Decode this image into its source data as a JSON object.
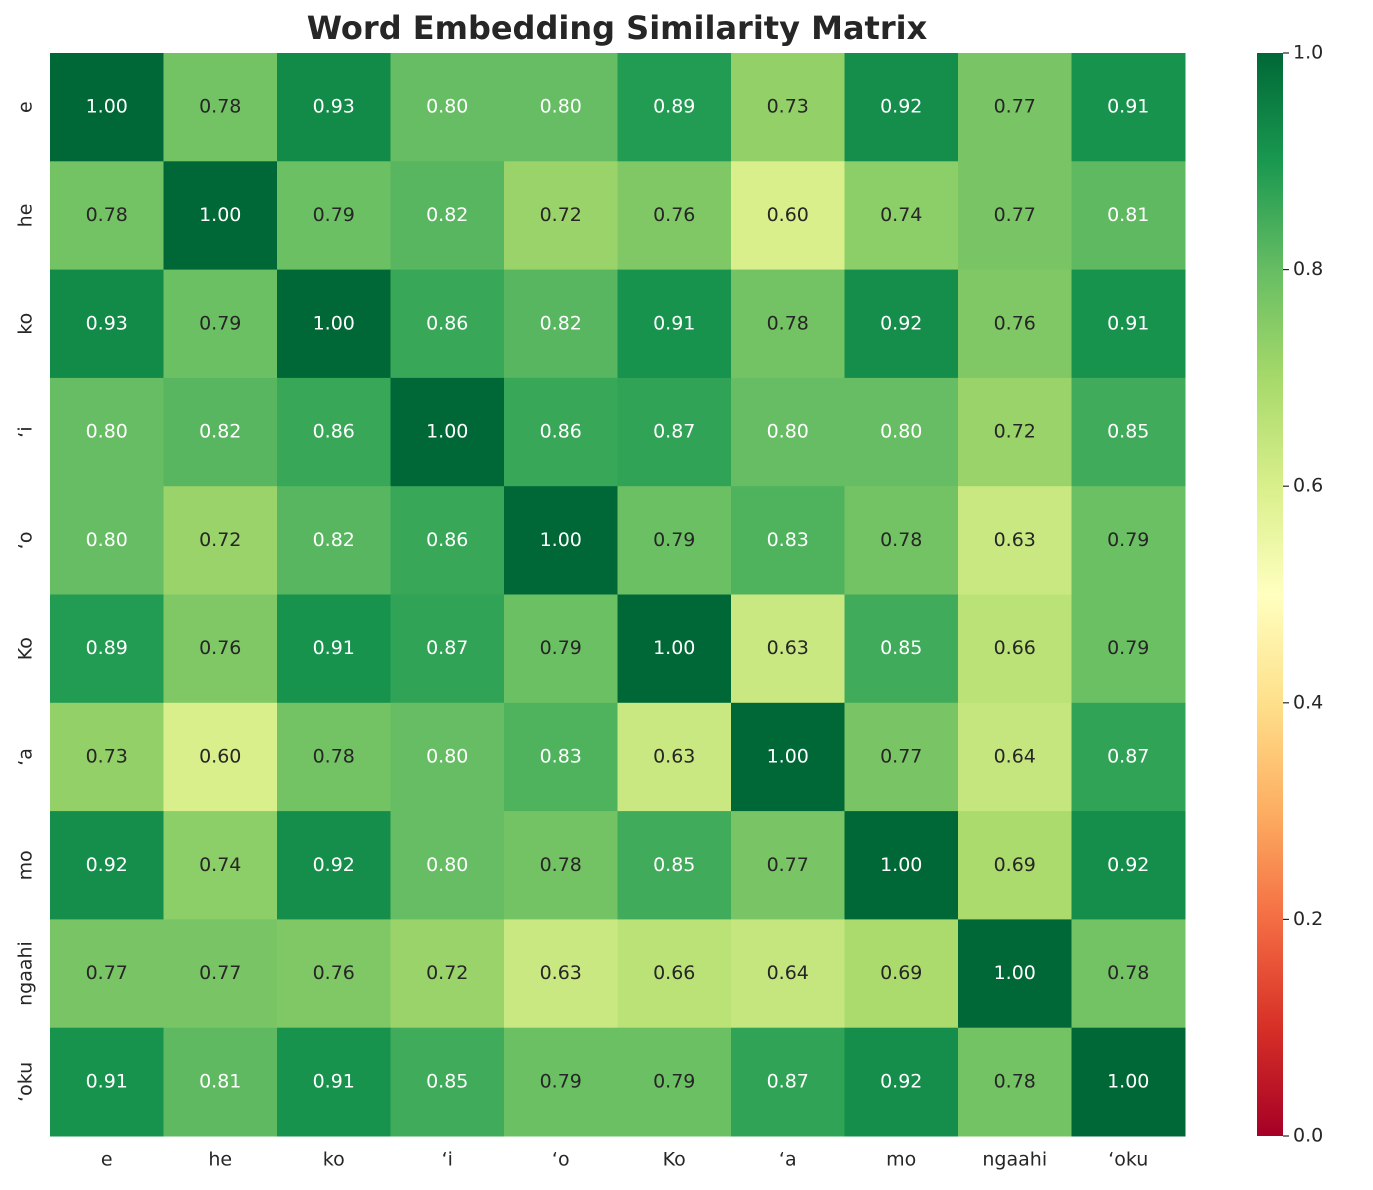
{
  "chart_data": {
    "type": "heatmap",
    "title": "Word Embedding Similarity Matrix",
    "x": [
      "e",
      "he",
      "ko",
      "ʻi",
      "ʻo",
      "Ko",
      "ʻa",
      "mo",
      "ngaahi",
      "ʻoku"
    ],
    "y": [
      "e",
      "he",
      "ko",
      "ʻi",
      "ʻo",
      "Ko",
      "ʻa",
      "mo",
      "ngaahi",
      "ʻoku"
    ],
    "z": [
      [
        1.0,
        0.78,
        0.93,
        0.8,
        0.8,
        0.89,
        0.73,
        0.92,
        0.77,
        0.91
      ],
      [
        0.78,
        1.0,
        0.79,
        0.82,
        0.72,
        0.76,
        0.6,
        0.74,
        0.77,
        0.81
      ],
      [
        0.93,
        0.79,
        1.0,
        0.86,
        0.82,
        0.91,
        0.78,
        0.92,
        0.76,
        0.91
      ],
      [
        0.8,
        0.82,
        0.86,
        1.0,
        0.86,
        0.87,
        0.8,
        0.8,
        0.72,
        0.85
      ],
      [
        0.8,
        0.72,
        0.82,
        0.86,
        1.0,
        0.79,
        0.83,
        0.78,
        0.63,
        0.79
      ],
      [
        0.89,
        0.76,
        0.91,
        0.87,
        0.79,
        1.0,
        0.63,
        0.85,
        0.66,
        0.79
      ],
      [
        0.73,
        0.6,
        0.78,
        0.8,
        0.83,
        0.63,
        1.0,
        0.77,
        0.64,
        0.87
      ],
      [
        0.92,
        0.74,
        0.92,
        0.8,
        0.78,
        0.85,
        0.77,
        1.0,
        0.69,
        0.92
      ],
      [
        0.77,
        0.77,
        0.76,
        0.72,
        0.63,
        0.66,
        0.64,
        0.69,
        1.0,
        0.78
      ],
      [
        0.91,
        0.81,
        0.91,
        0.85,
        0.79,
        0.79,
        0.87,
        0.92,
        0.78,
        1.0
      ]
    ],
    "value_labels": [
      [
        "1.00",
        "0.78",
        "0.93",
        "0.80",
        "0.80",
        "0.89",
        "0.73",
        "0.92",
        "0.77",
        "0.91"
      ],
      [
        "0.78",
        "1.00",
        "0.79",
        "0.82",
        "0.72",
        "0.76",
        "0.60",
        "0.74",
        "0.77",
        "0.81"
      ],
      [
        "0.93",
        "0.79",
        "1.00",
        "0.86",
        "0.82",
        "0.91",
        "0.78",
        "0.92",
        "0.76",
        "0.91"
      ],
      [
        "0.80",
        "0.82",
        "0.86",
        "1.00",
        "0.86",
        "0.87",
        "0.80",
        "0.80",
        "0.72",
        "0.85"
      ],
      [
        "0.80",
        "0.72",
        "0.82",
        "0.86",
        "1.00",
        "0.79",
        "0.83",
        "0.78",
        "0.63",
        "0.79"
      ],
      [
        "0.89",
        "0.76",
        "0.91",
        "0.87",
        "0.79",
        "1.00",
        "0.63",
        "0.85",
        "0.66",
        "0.79"
      ],
      [
        "0.73",
        "0.60",
        "0.78",
        "0.80",
        "0.83",
        "0.63",
        "1.00",
        "0.77",
        "0.64",
        "0.87"
      ],
      [
        "0.92",
        "0.74",
        "0.92",
        "0.80",
        "0.78",
        "0.85",
        "0.77",
        "1.00",
        "0.69",
        "0.92"
      ],
      [
        "0.77",
        "0.77",
        "0.76",
        "0.72",
        "0.63",
        "0.66",
        "0.64",
        "0.69",
        "1.00",
        "0.78"
      ],
      [
        "0.91",
        "0.81",
        "0.91",
        "0.85",
        "0.79",
        "0.79",
        "0.87",
        "0.92",
        "0.78",
        "1.00"
      ]
    ],
    "colormap": "RdYlGn",
    "zlim": [
      0,
      1
    ],
    "zticks": [
      {
        "value": 0,
        "label": "0.0"
      },
      0.2,
      0.4,
      0.6,
      0.8,
      {
        "value": 1,
        "label": "1.0"
      }
    ]
  }
}
